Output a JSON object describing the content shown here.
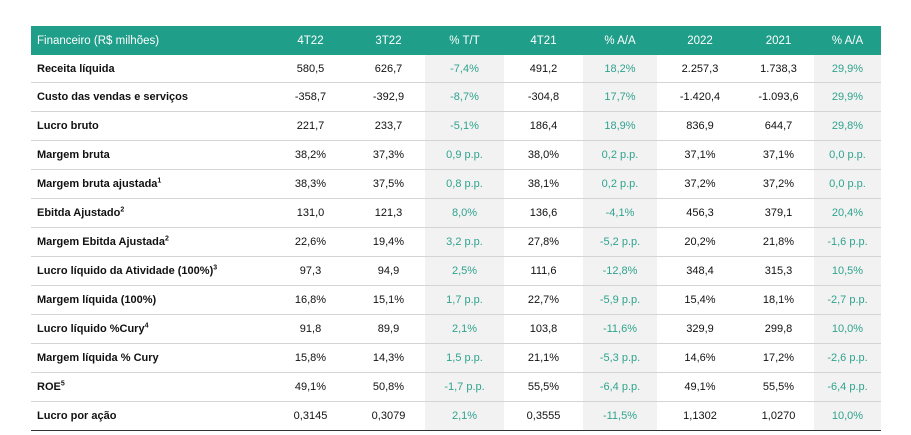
{
  "table": {
    "headers": [
      "Financeiro (R$ milhões)",
      "4T22",
      "3T22",
      "% T/T",
      "4T21",
      "% A/A",
      "2022",
      "2021",
      "% A/A"
    ],
    "rows": [
      {
        "label": "Receita líquida",
        "sup": "",
        "cells": [
          "580,5",
          "626,7",
          "-7,4%",
          "491,2",
          "18,2%",
          "2.257,3",
          "1.738,3",
          "29,9%"
        ]
      },
      {
        "label": "Custo das vendas e serviços",
        "sup": "",
        "cells": [
          "-358,7",
          "-392,9",
          "-8,7%",
          "-304,8",
          "17,7%",
          "-1.420,4",
          "-1.093,6",
          "29,9%"
        ]
      },
      {
        "label": "Lucro bruto",
        "sup": "",
        "cells": [
          "221,7",
          "233,7",
          "-5,1%",
          "186,4",
          "18,9%",
          "836,9",
          "644,7",
          "29,8%"
        ]
      },
      {
        "label": "Margem bruta",
        "sup": "",
        "cells": [
          "38,2%",
          "37,3%",
          "0,9 p.p.",
          "38,0%",
          "0,2 p.p.",
          "37,1%",
          "37,1%",
          "0,0 p.p."
        ]
      },
      {
        "label": "Margem bruta ajustada",
        "sup": "1",
        "cells": [
          "38,3%",
          "37,5%",
          "0,8 p.p.",
          "38,1%",
          "0,2 p.p.",
          "37,2%",
          "37,2%",
          "0,0 p.p."
        ]
      },
      {
        "label": "Ebitda Ajustado",
        "sup": "2",
        "cells": [
          "131,0",
          "121,3",
          "8,0%",
          "136,6",
          "-4,1%",
          "456,3",
          "379,1",
          "20,4%"
        ]
      },
      {
        "label": "Margem Ebitda Ajustada",
        "sup": "2",
        "cells": [
          "22,6%",
          "19,4%",
          "3,2 p.p.",
          "27,8%",
          "-5,2 p.p.",
          "20,2%",
          "21,8%",
          "-1,6 p.p."
        ]
      },
      {
        "label": "Lucro líquido da Atividade (100%)",
        "sup": "3",
        "cells": [
          "97,3",
          "94,9",
          "2,5%",
          "111,6",
          "-12,8%",
          "348,4",
          "315,3",
          "10,5%"
        ]
      },
      {
        "label": "Margem líquida (100%)",
        "sup": "",
        "cells": [
          "16,8%",
          "15,1%",
          "1,7 p.p.",
          "22,7%",
          "-5,9 p.p.",
          "15,4%",
          "18,1%",
          "-2,7 p.p."
        ]
      },
      {
        "label": "Lucro líquido %Cury",
        "sup": "4",
        "cells": [
          "91,8",
          "89,9",
          "2,1%",
          "103,8",
          "-11,6%",
          "329,9",
          "299,8",
          "10,0%"
        ]
      },
      {
        "label": "Margem líquida % Cury",
        "sup": "",
        "cells": [
          "15,8%",
          "14,3%",
          "1,5 p.p.",
          "21,1%",
          "-5,3 p.p.",
          "14,6%",
          "17,2%",
          "-2,6 p.p."
        ]
      },
      {
        "label": "ROE",
        "sup": "5",
        "cells": [
          "49,1%",
          "50,8%",
          "-1,7 p.p.",
          "55,5%",
          "-6,4 p.p.",
          "49,1%",
          "55,5%",
          "-6,4 p.p."
        ]
      },
      {
        "label": "Lucro por ação",
        "sup": "",
        "cells": [
          "0,3145",
          "0,3079",
          "2,1%",
          "0,3555",
          "-11,5%",
          "1,1302",
          "1,0270",
          "10,0%"
        ]
      }
    ]
  },
  "colors": {
    "header_bg": "#1f9e89",
    "header_text": "#ffffff",
    "variation_text": "#2fa38e",
    "variation_bg": "#f2f2f2"
  }
}
